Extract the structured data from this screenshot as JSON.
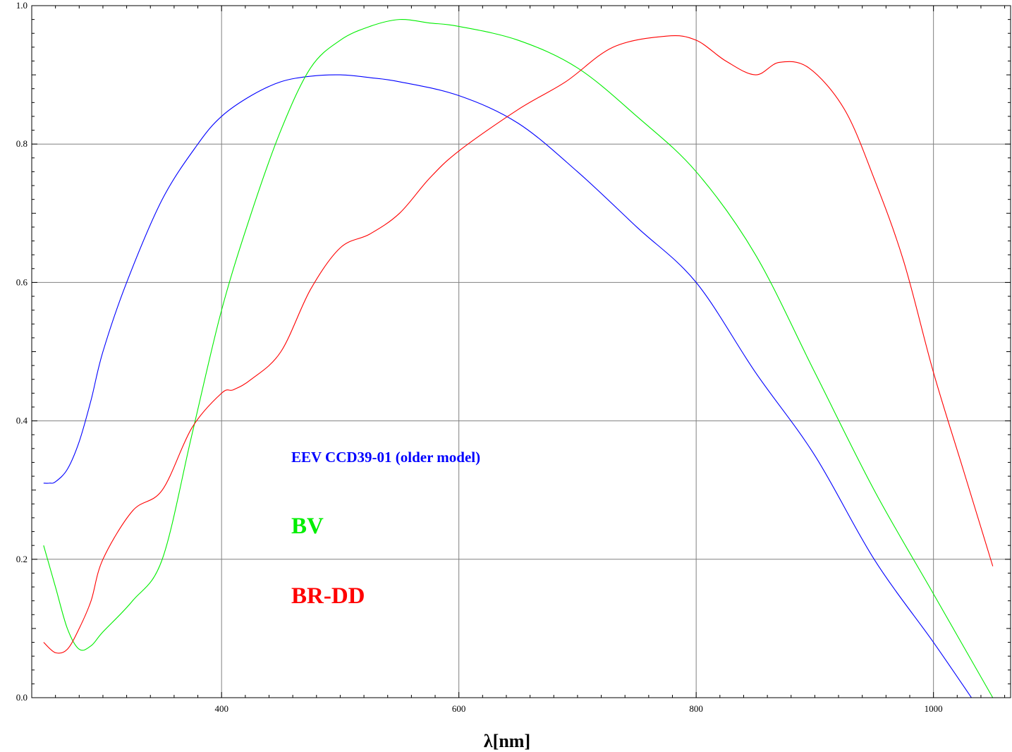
{
  "chart_data": {
    "type": "line",
    "title": "",
    "xlabel": "λ[nm]",
    "ylabel": "",
    "xlim": [
      240,
      1065
    ],
    "ylim": [
      0.0,
      1.0
    ],
    "xticks": [
      400,
      600,
      800,
      1000
    ],
    "yticks": [
      0.0,
      0.2,
      0.4,
      0.6,
      0.8,
      1.0
    ],
    "xtick_labels": [
      "400",
      "600",
      "800",
      "1000"
    ],
    "ytick_labels": [
      "0.0",
      "0.2",
      "0.4",
      "0.6",
      "0.8",
      "1.0"
    ],
    "grid": true,
    "legend_position": "inside-left",
    "series": [
      {
        "name": "EEV CCD39-01 (older model)",
        "color": "#0000ff",
        "x": [
          250,
          255,
          260,
          270,
          280,
          290,
          300,
          320,
          350,
          380,
          400,
          425,
          450,
          475,
          500,
          525,
          550,
          600,
          650,
          700,
          750,
          800,
          850,
          900,
          950,
          1000,
          1032
        ],
        "y": [
          0.31,
          0.31,
          0.312,
          0.33,
          0.37,
          0.43,
          0.5,
          0.6,
          0.72,
          0.8,
          0.84,
          0.87,
          0.89,
          0.898,
          0.9,
          0.896,
          0.89,
          0.87,
          0.83,
          0.76,
          0.68,
          0.6,
          0.47,
          0.35,
          0.2,
          0.08,
          0.0
        ]
      },
      {
        "name": "BV",
        "color": "#00ee00",
        "x": [
          250,
          260,
          270,
          280,
          290,
          300,
          325,
          350,
          375,
          400,
          425,
          450,
          475,
          500,
          525,
          550,
          575,
          600,
          650,
          700,
          750,
          800,
          850,
          900,
          950,
          1000,
          1050
        ],
        "y": [
          0.22,
          0.16,
          0.1,
          0.07,
          0.075,
          0.095,
          0.14,
          0.2,
          0.38,
          0.56,
          0.7,
          0.82,
          0.91,
          0.95,
          0.97,
          0.98,
          0.975,
          0.97,
          0.95,
          0.91,
          0.84,
          0.76,
          0.64,
          0.47,
          0.3,
          0.15,
          0.0
        ]
      },
      {
        "name": "BR-DD",
        "color": "#ff0000",
        "x": [
          250,
          260,
          270,
          280,
          290,
          300,
          325,
          350,
          375,
          400,
          410,
          425,
          450,
          475,
          500,
          525,
          550,
          575,
          600,
          650,
          690,
          730,
          775,
          800,
          825,
          850,
          870,
          895,
          925,
          950,
          975,
          1000,
          1025,
          1050
        ],
        "y": [
          0.08,
          0.065,
          0.07,
          0.1,
          0.14,
          0.2,
          0.27,
          0.3,
          0.39,
          0.44,
          0.445,
          0.46,
          0.5,
          0.59,
          0.65,
          0.67,
          0.7,
          0.75,
          0.79,
          0.85,
          0.89,
          0.94,
          0.956,
          0.95,
          0.92,
          0.9,
          0.918,
          0.91,
          0.85,
          0.75,
          0.63,
          0.47,
          0.33,
          0.19
        ]
      }
    ],
    "legend_entries": [
      {
        "label": "EEV CCD39-01 (older model)",
        "color": "#0000ff",
        "size": "small"
      },
      {
        "label": "BV",
        "color": "#00ee00",
        "size": "big"
      },
      {
        "label": "BR-DD",
        "color": "#ff0000",
        "size": "big"
      }
    ]
  }
}
